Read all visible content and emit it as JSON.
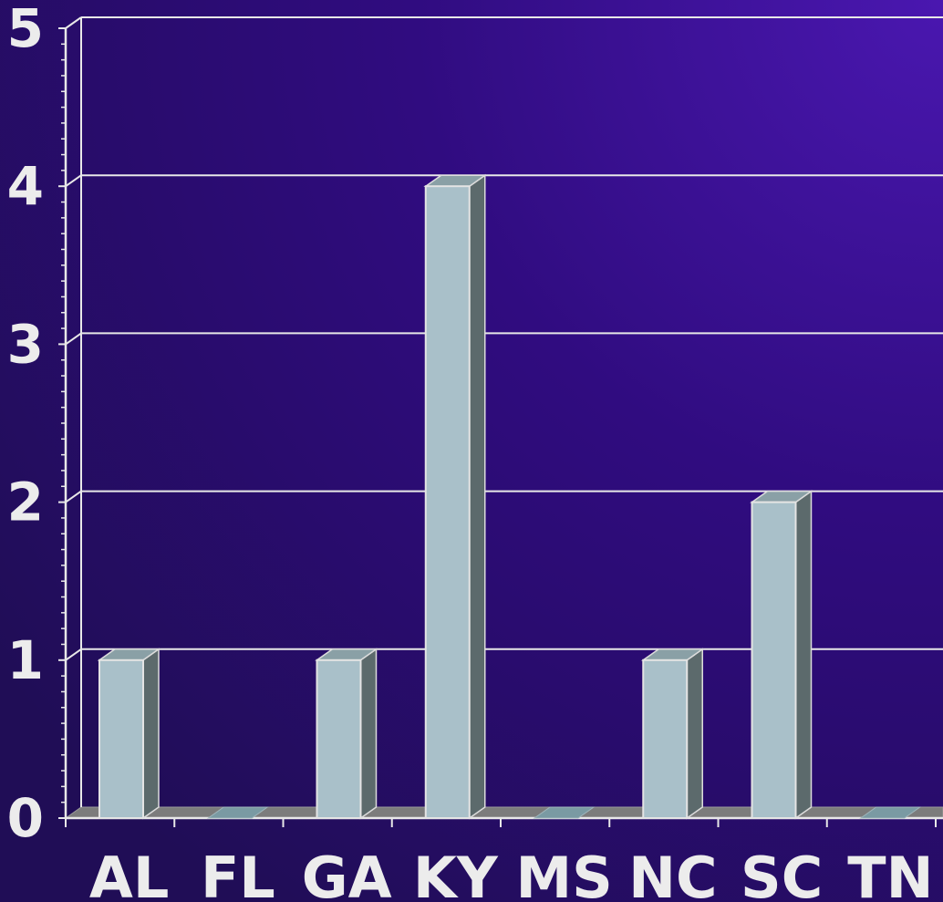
{
  "chart_data": {
    "type": "bar",
    "categories": [
      "AL",
      "FL",
      "GA",
      "KY",
      "MS",
      "NC",
      "SC",
      "TN"
    ],
    "values": [
      1,
      0,
      1,
      4,
      0,
      1,
      2,
      0
    ],
    "ylim": [
      0,
      5
    ],
    "yticks": [
      "0",
      "1",
      "2",
      "3",
      "4",
      "5"
    ],
    "grid": true,
    "legend": "none",
    "style": "3d",
    "colors": {
      "bar_front": "#a9c0c9",
      "bar_top": "#8aa0a6",
      "bar_side": "#5c6a6c",
      "zero_marker": "#7a9aa3",
      "axis": "#e8e8e8",
      "background_dark": "#200d56",
      "background_light": "#4a17b0"
    }
  }
}
